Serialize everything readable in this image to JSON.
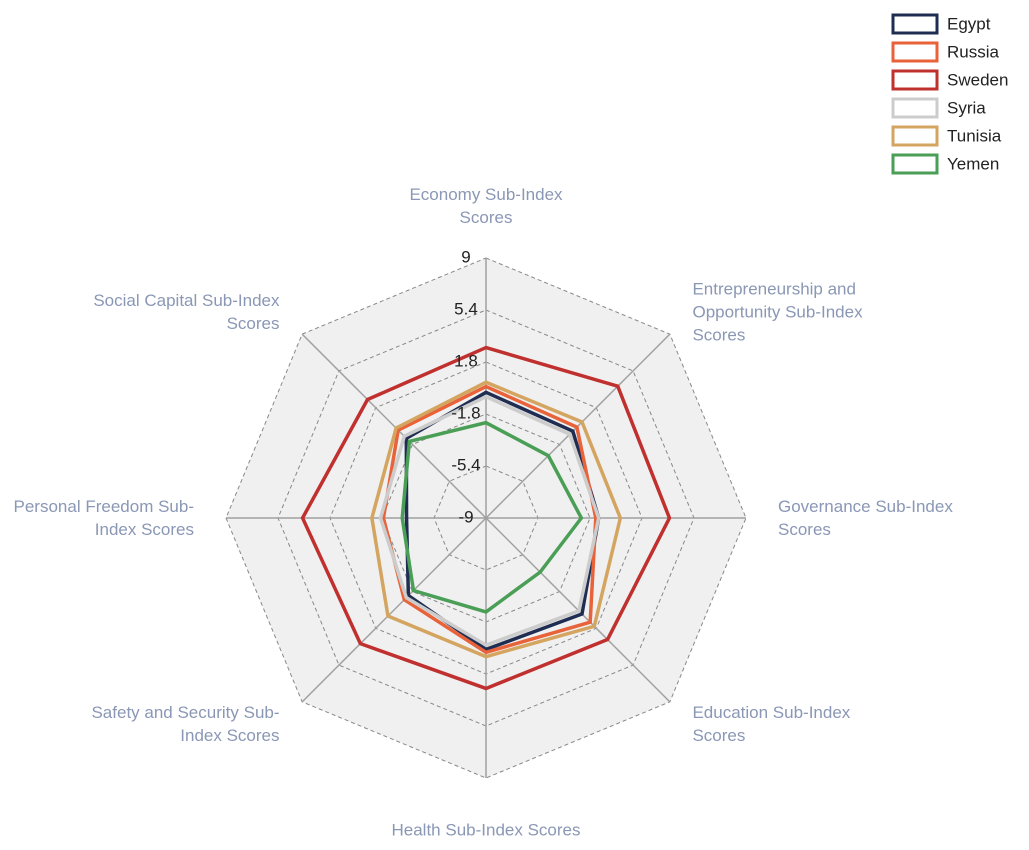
{
  "chart_data": {
    "type": "radar",
    "categories": [
      "Economy Sub-Index Scores",
      "Entrepreneurship and Opportunity Sub-Index Scores",
      "Governance Sub-Index Scores",
      "Education Sub-Index Scores",
      "Health Sub-Index Scores",
      "Safety and Security Sub-Index Scores",
      "Personal Freedom Sub-Index Scores",
      "Social Capital Sub-Index Scores"
    ],
    "ylim": [
      -9,
      9
    ],
    "yticks": [
      -9,
      -5.4,
      -1.8,
      1.8,
      5.4,
      9
    ],
    "grid": true,
    "legend": "top-right",
    "series": [
      {
        "name": "Egypt",
        "color": "#1f2d52",
        "values": [
          -0.3,
          -0.5,
          -1.2,
          0.4,
          0.1,
          -1.4,
          -3.5,
          -1.2
        ]
      },
      {
        "name": "Russia",
        "color": "#e8623a",
        "values": [
          0.1,
          -0.1,
          -1.4,
          1.2,
          0.3,
          -1.0,
          -1.9,
          -0.4
        ]
      },
      {
        "name": "Sweden",
        "color": "#c0302e",
        "values": [
          2.8,
          3.9,
          3.7,
          2.9,
          2.8,
          3.3,
          3.7,
          2.6
        ]
      },
      {
        "name": "Syria",
        "color": "#cccccc",
        "values": [
          -0.6,
          -0.8,
          -1.2,
          0.1,
          -0.2,
          -1.2,
          -1.7,
          -1.0
        ]
      },
      {
        "name": "Tunisia",
        "color": "#d4a560",
        "values": [
          0.4,
          0.4,
          0.3,
          1.6,
          0.6,
          0.6,
          -1.1,
          -0.2
        ]
      },
      {
        "name": "Yemen",
        "color": "#4a9e56",
        "values": [
          -2.4,
          -2.9,
          -2.4,
          -3.7,
          -2.5,
          -1.9,
          -3.2,
          -1.5
        ]
      }
    ]
  }
}
